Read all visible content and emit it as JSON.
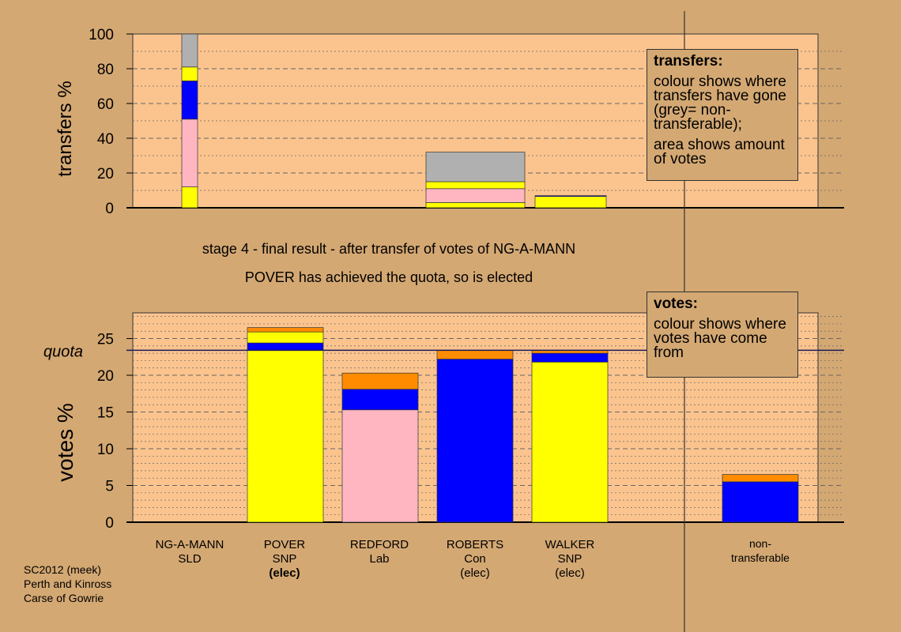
{
  "colors": {
    "background": "#d4a873",
    "plot_bg": "#fbc48e",
    "yellow": "#ffff00",
    "blue": "#0000ff",
    "pink": "#ffb6c1",
    "orange": "#ff8c00",
    "grey": "#b0b0b0"
  },
  "stage_text": {
    "line1": "stage 4 - final result - after transfer of votes of NG-A-MANN",
    "line2": "POVER has achieved the quota, so is elected"
  },
  "transfers_box": {
    "title": "transfers:",
    "text1": "colour shows where transfers have gone (grey= non-transferable);",
    "text2": "area shows amount of votes"
  },
  "votes_box": {
    "title": "votes:",
    "text1": "colour shows where votes have come from"
  },
  "candidates": [
    {
      "name": "NG-A-MANN",
      "party": "SLD",
      "status": ""
    },
    {
      "name": "POVER",
      "party": "SNP",
      "status": "(elec)"
    },
    {
      "name": "REDFORD",
      "party": "Lab",
      "status": ""
    },
    {
      "name": "ROBERTS",
      "party": "Con",
      "status": "(elec)"
    },
    {
      "name": "WALKER",
      "party": "SNP",
      "status": "(elec)"
    },
    {
      "name": "non-",
      "party": "transferable",
      "status": ""
    }
  ],
  "footer": {
    "line1": "SC2012 (meek)",
    "line2": "Perth and Kinross",
    "line3": "Carse of Gowrie"
  },
  "chart_data": [
    {
      "type": "bar",
      "stacked": true,
      "ylabel": "transfers %",
      "ylim": [
        0,
        100
      ],
      "yticks": [
        0,
        20,
        40,
        60,
        80,
        100
      ],
      "categories": [
        "NG-A-MANN",
        "POVER",
        "REDFORD",
        "ROBERTS",
        "WALKER",
        "non-transferable"
      ],
      "stacks": [
        [
          {
            "color": "yellow",
            "value": 12
          },
          {
            "color": "pink",
            "value": 39
          },
          {
            "color": "blue",
            "value": 22
          },
          {
            "color": "yellow",
            "value": 8
          },
          {
            "color": "grey",
            "value": 19
          }
        ],
        [],
        [],
        [
          {
            "color": "yellow",
            "value": 3
          },
          {
            "color": "pink",
            "value": 8
          },
          {
            "color": "yellow",
            "value": 4
          },
          {
            "color": "grey",
            "value": 17
          }
        ],
        [
          {
            "color": "yellow",
            "value": 6.5
          },
          {
            "color": "blue",
            "value": 0.5
          }
        ],
        []
      ]
    },
    {
      "type": "bar",
      "stacked": true,
      "ylabel": "votes %",
      "ylim": [
        0,
        28.5
      ],
      "yticks": [
        0,
        5,
        10,
        15,
        20,
        25
      ],
      "quota": 23.4,
      "quota_label": "quota",
      "categories": [
        "NG-A-MANN",
        "POVER",
        "REDFORD",
        "ROBERTS",
        "WALKER",
        "non-transferable"
      ],
      "stacks": [
        [],
        [
          {
            "color": "yellow",
            "value": 23.4
          },
          {
            "color": "blue",
            "value": 1.0
          },
          {
            "color": "yellow",
            "value": 1.5
          },
          {
            "color": "orange",
            "value": 0.6
          }
        ],
        [
          {
            "color": "pink",
            "value": 15.3
          },
          {
            "color": "blue",
            "value": 2.8
          },
          {
            "color": "orange",
            "value": 2.2
          }
        ],
        [
          {
            "color": "blue",
            "value": 22.2
          },
          {
            "color": "orange",
            "value": 1.2
          }
        ],
        [
          {
            "color": "yellow",
            "value": 21.8
          },
          {
            "color": "blue",
            "value": 1.2
          },
          {
            "color": "orange",
            "value": 0.4
          }
        ],
        [
          {
            "color": "blue",
            "value": 5.5
          },
          {
            "color": "orange",
            "value": 1.0
          }
        ]
      ]
    }
  ]
}
